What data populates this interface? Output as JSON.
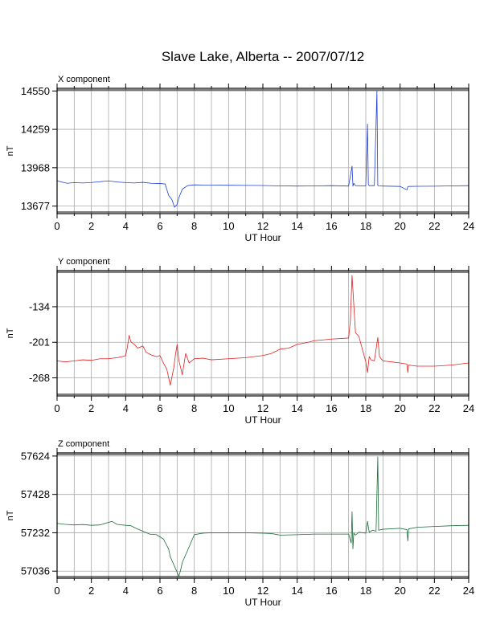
{
  "title": "Slave Lake, Alberta -- 2007/07/12",
  "chart_data": [
    {
      "type": "line",
      "title": "X component",
      "xlabel": "UT Hour",
      "ylabel": "nT",
      "xlim": [
        0,
        24
      ],
      "ylim": [
        13620,
        14570
      ],
      "xticks": [
        0,
        2,
        4,
        6,
        8,
        10,
        12,
        14,
        16,
        18,
        20,
        22,
        24
      ],
      "yticks": [
        13677,
        13968,
        14259,
        14550
      ],
      "color": "#1f3fd8",
      "series": [
        {
          "x": [
            0,
            0.3,
            0.6,
            1.0,
            1.5,
            2.0,
            2.5,
            3.0,
            3.5,
            4.0,
            4.5,
            5.0,
            5.5,
            6.0,
            6.3,
            6.5,
            6.7,
            6.85,
            7.0,
            7.1,
            7.3,
            7.6,
            8.0,
            8.5,
            9.0,
            10.0,
            11.0,
            12.0,
            13.0,
            14.0,
            15.0,
            16.0,
            17.0,
            17.2,
            17.25,
            17.3,
            17.4,
            18.0,
            18.1,
            18.15,
            18.2,
            18.5,
            18.65,
            18.7,
            18.75,
            19.0,
            20.0,
            20.4,
            20.45,
            20.5,
            21.0,
            22.0,
            23.0,
            24.0
          ],
          "y": [
            13870,
            13858,
            13850,
            13855,
            13852,
            13856,
            13862,
            13868,
            13860,
            13855,
            13852,
            13857,
            13850,
            13848,
            13845,
            13760,
            13725,
            13668,
            13690,
            13740,
            13805,
            13832,
            13838,
            13837,
            13836,
            13835,
            13834,
            13833,
            13830,
            13829,
            13830,
            13832,
            13829,
            13980,
            13828,
            13850,
            13832,
            13830,
            14300,
            13840,
            13832,
            13832,
            14550,
            13833,
            13830,
            13829,
            13826,
            13800,
            13825,
            13826,
            13827,
            13828,
            13830,
            13832
          ]
        }
      ]
    },
    {
      "type": "line",
      "title": "Y component",
      "xlabel": "UT Hour",
      "ylabel": "nT",
      "xlim": [
        0,
        24
      ],
      "ylim": [
        -302,
        -66
      ],
      "xticks": [
        0,
        2,
        4,
        6,
        8,
        10,
        12,
        14,
        16,
        18,
        20,
        22,
        24
      ],
      "yticks": [
        -134,
        -201,
        -268
      ],
      "color": "#e02020",
      "series": [
        {
          "x": [
            0,
            0.5,
            1.0,
            1.5,
            2.0,
            2.5,
            3.0,
            3.5,
            3.8,
            4.0,
            4.1,
            4.2,
            4.3,
            4.5,
            4.7,
            5.0,
            5.2,
            5.5,
            5.8,
            6.0,
            6.2,
            6.4,
            6.6,
            6.8,
            6.9,
            7.0,
            7.1,
            7.3,
            7.5,
            7.7,
            8.0,
            8.5,
            9.0,
            10.0,
            11.0,
            12.0,
            12.5,
            13.0,
            13.5,
            14.0,
            14.5,
            15.0,
            16.0,
            17.0,
            17.1,
            17.2,
            17.3,
            17.4,
            17.6,
            18.0,
            18.1,
            18.2,
            18.3,
            18.5,
            18.7,
            18.8,
            19.0,
            19.5,
            20.0,
            20.4,
            20.45,
            20.5,
            21.0,
            22.0,
            23.0,
            24.0
          ],
          "y": [
            -236,
            -238,
            -236,
            -234,
            -235,
            -232,
            -232,
            -230,
            -228,
            -226,
            -210,
            -188,
            -200,
            -205,
            -212,
            -208,
            -220,
            -225,
            -228,
            -226,
            -240,
            -252,
            -282,
            -250,
            -225,
            -205,
            -235,
            -262,
            -222,
            -240,
            -232,
            -231,
            -234,
            -232,
            -230,
            -226,
            -222,
            -214,
            -212,
            -205,
            -202,
            -198,
            -195,
            -193,
            -160,
            -75,
            -130,
            -183,
            -190,
            -238,
            -258,
            -228,
            -234,
            -236,
            -192,
            -228,
            -236,
            -238,
            -240,
            -242,
            -258,
            -244,
            -246,
            -246,
            -244,
            -240
          ]
        }
      ]
    },
    {
      "type": "line",
      "title": "Z component",
      "xlabel": "UT Hour",
      "ylabel": "nT",
      "xlim": [
        0,
        24
      ],
      "ylim": [
        57000,
        57640
      ],
      "xticks": [
        0,
        2,
        4,
        6,
        8,
        10,
        12,
        14,
        16,
        18,
        20,
        22,
        24
      ],
      "yticks": [
        57036,
        57232,
        57428,
        57624
      ],
      "color": "#1c6b3a",
      "series": [
        {
          "x": [
            0,
            0.5,
            1.0,
            1.5,
            2.0,
            2.5,
            3.0,
            3.2,
            3.5,
            4.0,
            4.3,
            4.6,
            5.0,
            5.4,
            5.8,
            6.2,
            6.5,
            6.6,
            6.8,
            7.0,
            7.1,
            7.2,
            7.3,
            7.6,
            8.0,
            8.5,
            9.0,
            10.0,
            11.0,
            12.0,
            12.5,
            13.0,
            14.0,
            15.0,
            16.0,
            17.0,
            17.15,
            17.2,
            17.25,
            17.3,
            17.4,
            17.6,
            18.0,
            18.1,
            18.2,
            18.4,
            18.6,
            18.7,
            18.75,
            18.9,
            19.0,
            20.0,
            20.4,
            20.45,
            20.5,
            21.0,
            22.0,
            23.0,
            24.0
          ],
          "y": [
            57280,
            57275,
            57272,
            57274,
            57270,
            57272,
            57285,
            57290,
            57275,
            57270,
            57268,
            57255,
            57240,
            57225,
            57222,
            57200,
            57150,
            57110,
            57070,
            57030,
            57010,
            57040,
            57080,
            57140,
            57222,
            57230,
            57232,
            57232,
            57232,
            57230,
            57228,
            57220,
            57222,
            57225,
            57225,
            57225,
            57180,
            57340,
            57150,
            57230,
            57220,
            57235,
            57230,
            57290,
            57235,
            57245,
            57240,
            57620,
            57245,
            57248,
            57250,
            57255,
            57248,
            57190,
            57252,
            57260,
            57264,
            57268,
            57270
          ]
        }
      ]
    }
  ]
}
